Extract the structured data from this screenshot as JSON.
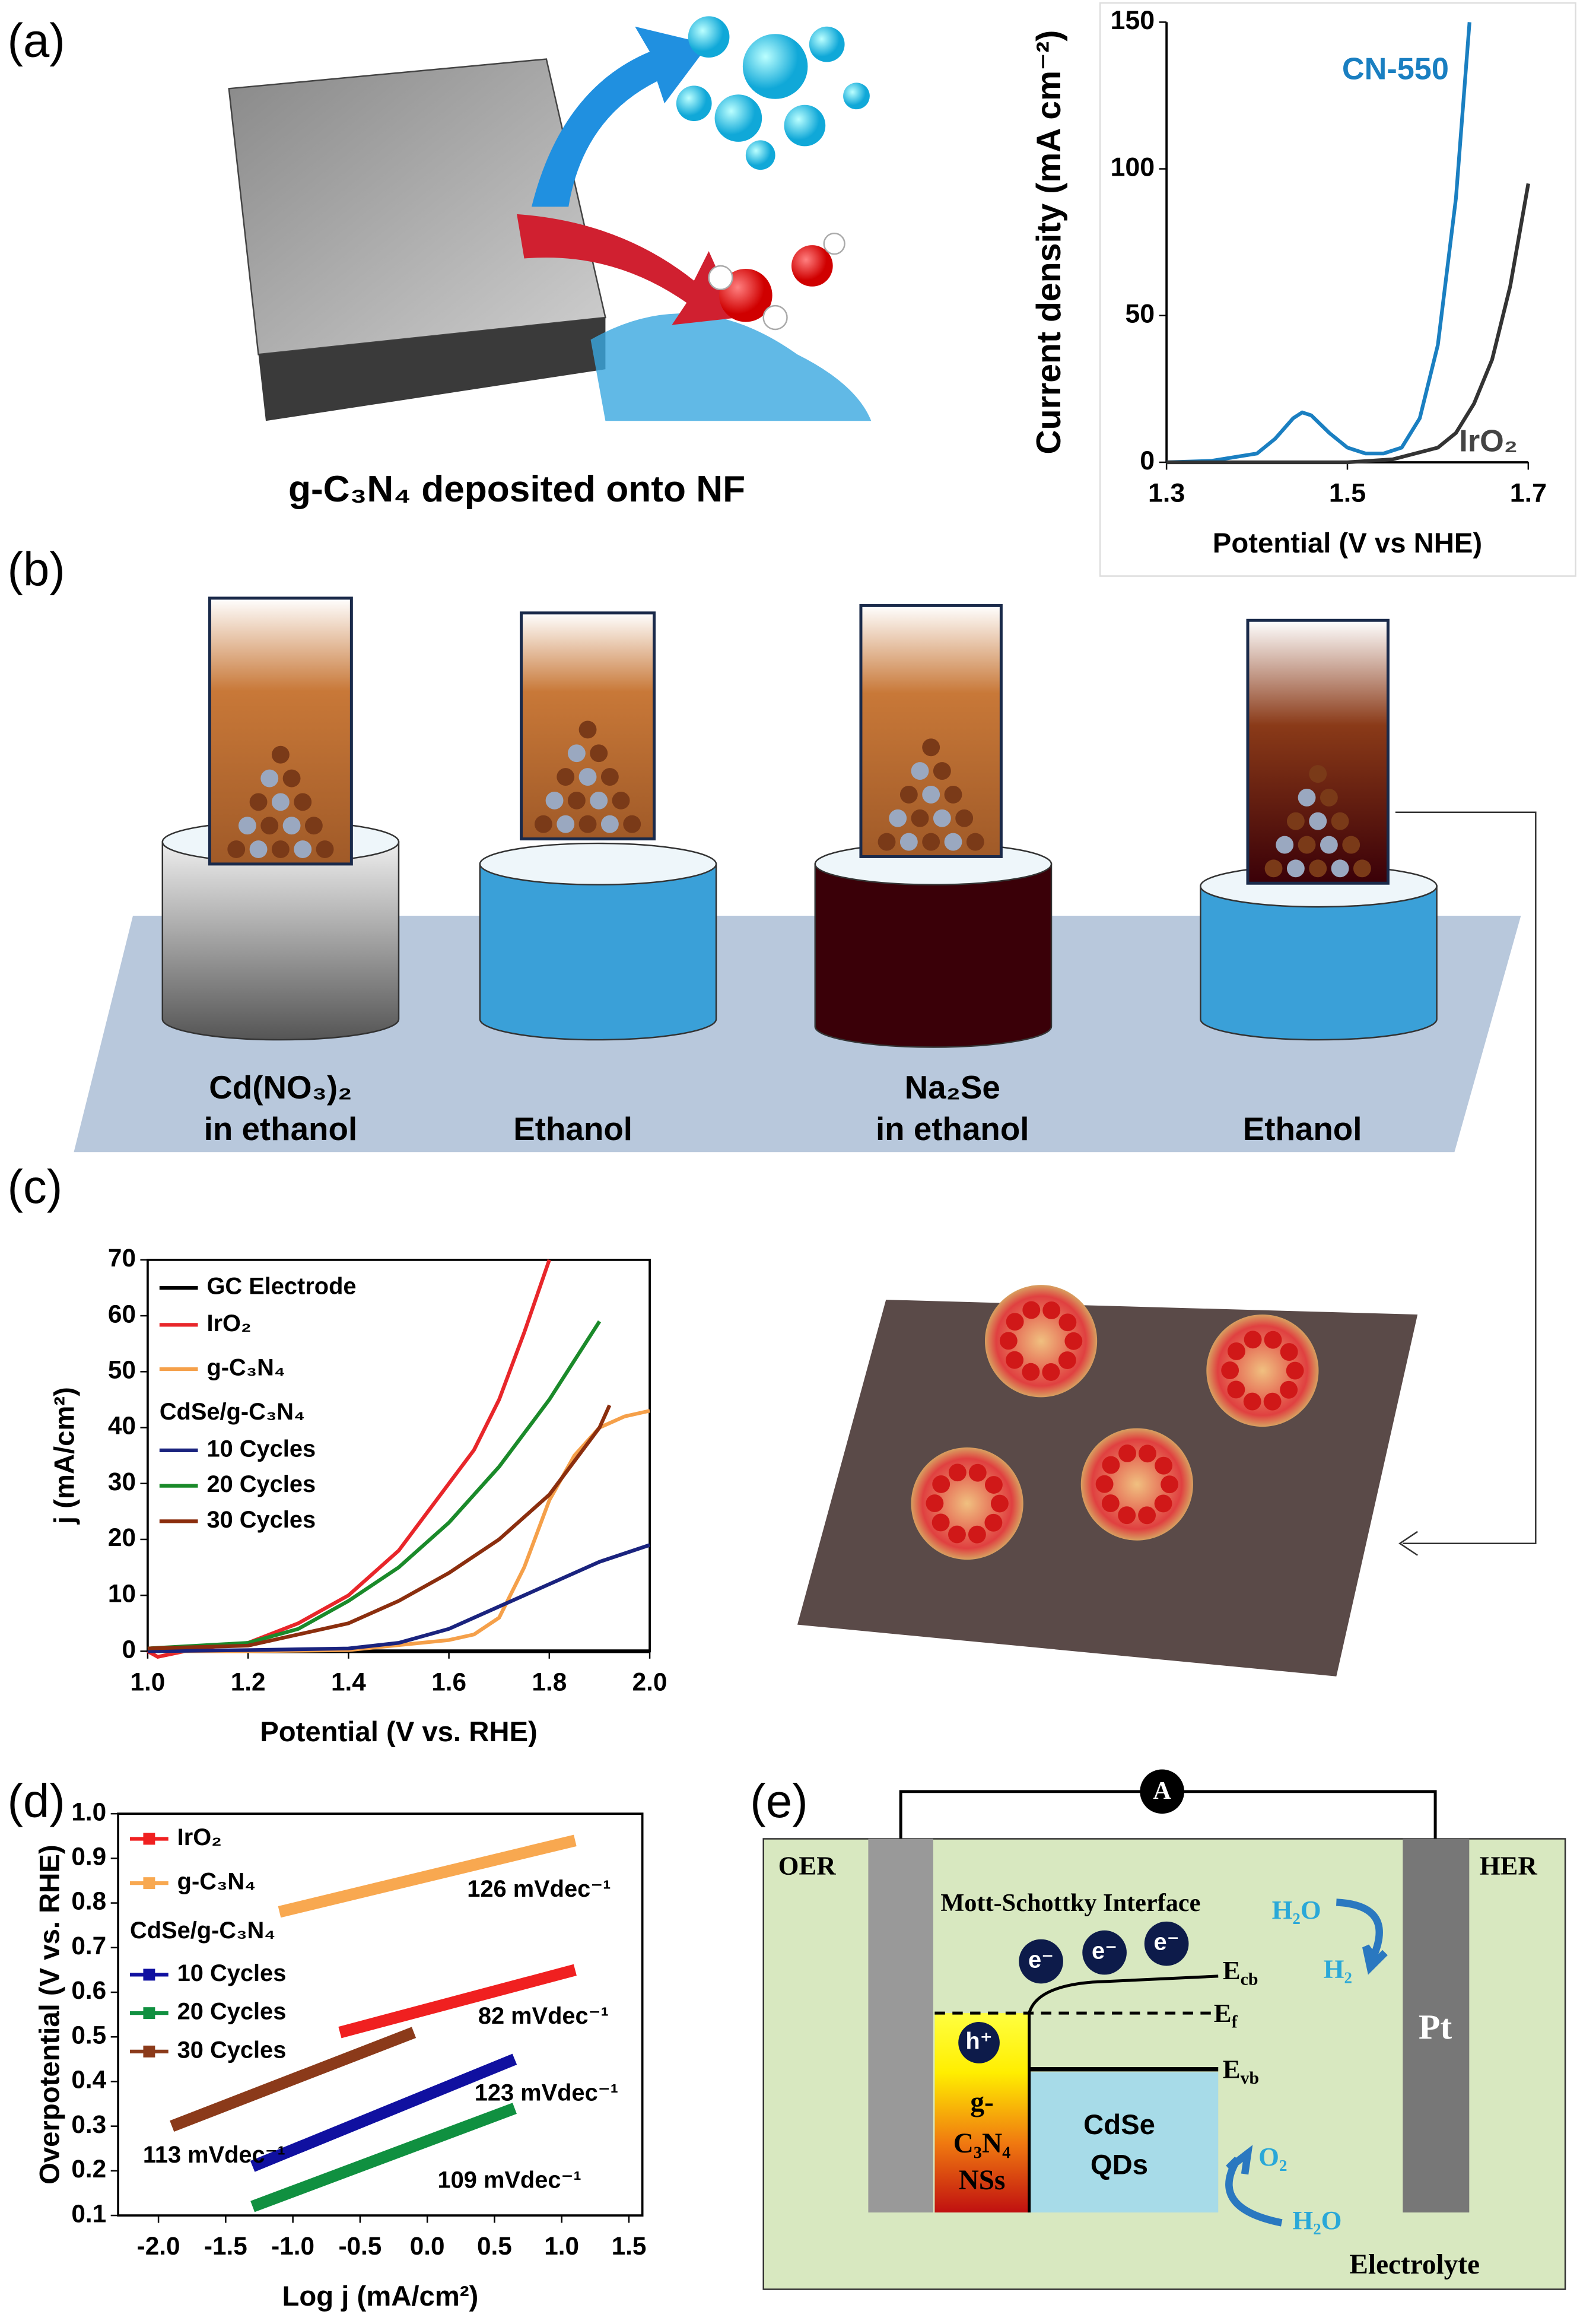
{
  "figure": {
    "panel_labels": [
      "(a)",
      "(b)",
      "(c)",
      "(d)",
      "(e)"
    ],
    "a": {
      "caption": "g-C₃N₄ deposited onto NF"
    },
    "b": {
      "beakers": [
        [
          "Cd(NO₃)₂",
          "in ethanol"
        ],
        [
          "Ethanol"
        ],
        [
          "Na₂Se",
          "in ethanol"
        ],
        [
          "Ethanol"
        ]
      ]
    },
    "e": {
      "meter": "A",
      "left": "OER",
      "right": "HER",
      "interface": "Mott-Schottky Interface",
      "electrons": [
        "e⁻",
        "e⁻",
        "e⁻"
      ],
      "hole": "h⁺",
      "levels": [
        {
          "base": "E",
          "sub": "cb"
        },
        {
          "base": "E",
          "sub": "f"
        },
        {
          "base": "E",
          "sub": "vb"
        }
      ],
      "cathode": "Pt",
      "g_c3n4": [
        "g-",
        "C₃N₄",
        "NSs"
      ],
      "cdse": [
        "CdSe",
        "QDs"
      ],
      "her": [
        "H₂O",
        "H₂"
      ],
      "oer": [
        "O₂",
        "H₂O"
      ],
      "electrolyte": "Electrolyte"
    }
  },
  "chart_data": [
    {
      "type": "line",
      "xlabel": "Potential (V vs NHE)",
      "ylabel": "Current density (mA cm⁻²)",
      "xlim": [
        1.3,
        1.7
      ],
      "xticks": [
        1.3,
        1.5,
        1.7
      ],
      "ylim": [
        0,
        150
      ],
      "yticks": [
        0,
        50,
        100,
        150
      ],
      "series": [
        {
          "name": "CN-550",
          "color": "#1a7fc1",
          "x": [
            1.3,
            1.35,
            1.4,
            1.42,
            1.44,
            1.45,
            1.46,
            1.48,
            1.5,
            1.52,
            1.54,
            1.56,
            1.58,
            1.6,
            1.62,
            1.635
          ],
          "values": [
            0,
            0.5,
            3,
            8,
            15,
            17,
            16,
            10,
            5,
            3,
            3,
            5,
            15,
            40,
            90,
            150
          ]
        },
        {
          "name": "IrO₂",
          "color": "#333333",
          "x": [
            1.3,
            1.5,
            1.55,
            1.6,
            1.62,
            1.64,
            1.66,
            1.68,
            1.7
          ],
          "values": [
            0,
            0,
            1,
            5,
            10,
            20,
            35,
            60,
            95
          ]
        }
      ]
    },
    {
      "type": "line",
      "xlabel": "Potential (V vs. RHE)",
      "ylabel": "j (mA/cm²)",
      "xlim": [
        1,
        2
      ],
      "xticks": [
        {
          "value": 1,
          "label": "1.0"
        },
        1.2,
        1.4,
        1.6,
        1.8,
        {
          "value": 2,
          "label": "2.0"
        }
      ],
      "ylim": [
        0,
        70
      ],
      "yticks": [
        0,
        10,
        20,
        30,
        40,
        50,
        60,
        70
      ],
      "legend_title": "CdSe/g-C₃N₄",
      "series": [
        {
          "name": "GC Electrode",
          "color": "#000000",
          "x": [
            1,
            1.5,
            2
          ],
          "values": [
            0,
            0,
            0
          ]
        },
        {
          "name": "IrO₂",
          "color": "#e8262a",
          "x": [
            1,
            1.02,
            1.1,
            1.2,
            1.3,
            1.4,
            1.5,
            1.6,
            1.65,
            1.7,
            1.75,
            1.8
          ],
          "values": [
            0,
            -1,
            0.5,
            1.5,
            5,
            10,
            18,
            30,
            36,
            45,
            57,
            70
          ]
        },
        {
          "name": "g-C₃N₄",
          "color": "#f5a04a",
          "x": [
            1,
            1.2,
            1.4,
            1.6,
            1.65,
            1.7,
            1.75,
            1.8,
            1.85,
            1.9,
            1.95,
            2
          ],
          "values": [
            0,
            0,
            0.2,
            2,
            3,
            6,
            15,
            27,
            35,
            40,
            42,
            43
          ]
        },
        {
          "name": "10 Cycles",
          "color": "#1a237e",
          "x": [
            1,
            1.2,
            1.4,
            1.5,
            1.6,
            1.7,
            1.8,
            1.9,
            2
          ],
          "values": [
            0,
            0.2,
            0.5,
            1.5,
            4,
            8,
            12,
            16,
            19
          ]
        },
        {
          "name": "20 Cycles",
          "color": "#1a8a2a",
          "x": [
            1,
            1.2,
            1.3,
            1.4,
            1.5,
            1.6,
            1.7,
            1.8,
            1.9
          ],
          "values": [
            0.5,
            1.5,
            4,
            9,
            15,
            23,
            33,
            45,
            59
          ]
        },
        {
          "name": "30 Cycles",
          "color": "#8b2e0e",
          "x": [
            1,
            1.2,
            1.4,
            1.5,
            1.6,
            1.7,
            1.8,
            1.9,
            1.92
          ],
          "values": [
            0.5,
            1,
            5,
            9,
            14,
            20,
            28,
            40,
            44
          ]
        }
      ]
    },
    {
      "type": "line",
      "xlabel": "Log j (mA/cm²)",
      "ylabel": "Overpotential (V vs. RHE)",
      "xlim": [
        -2.3,
        1.6
      ],
      "xticks": [
        {
          "value": -2,
          "label": "-2.0"
        },
        -1.5,
        {
          "value": -1,
          "label": "-1.0"
        },
        -0.5,
        {
          "value": 0,
          "label": "0.0"
        },
        0.5,
        {
          "value": 1,
          "label": "1.0"
        },
        1.5
      ],
      "ylim": [
        0.1,
        1
      ],
      "yticks": [
        0.1,
        0.2,
        0.3,
        0.4,
        0.5,
        0.6,
        0.7,
        0.8,
        0.9,
        {
          "value": 1,
          "label": "1.0"
        }
      ],
      "legend_title": "CdSe/g-C₃N₄",
      "annotations": [
        "126 mVdec⁻¹",
        "82 mVdec⁻¹",
        "123 mVdec⁻¹",
        "113 mVdec⁻¹",
        "109 mVdec⁻¹"
      ],
      "series": [
        {
          "name": "IrO₂",
          "color": "#f02020",
          "x": [
            -0.65,
            1.1
          ],
          "values": [
            0.51,
            0.65
          ]
        },
        {
          "name": "g-C₃N₄",
          "color": "#f8a850",
          "x": [
            -1.1,
            1.1
          ],
          "values": [
            0.78,
            0.94
          ]
        },
        {
          "name": "10 Cycles",
          "color": "#1010a0",
          "x": [
            -1.3,
            0.65
          ],
          "values": [
            0.21,
            0.45
          ]
        },
        {
          "name": "20 Cycles",
          "color": "#109040",
          "x": [
            -1.3,
            0.65
          ],
          "values": [
            0.12,
            0.34
          ]
        },
        {
          "name": "30 Cycles",
          "color": "#8b3a1a",
          "x": [
            -1.9,
            -0.1
          ],
          "values": [
            0.3,
            0.51
          ]
        }
      ]
    }
  ]
}
